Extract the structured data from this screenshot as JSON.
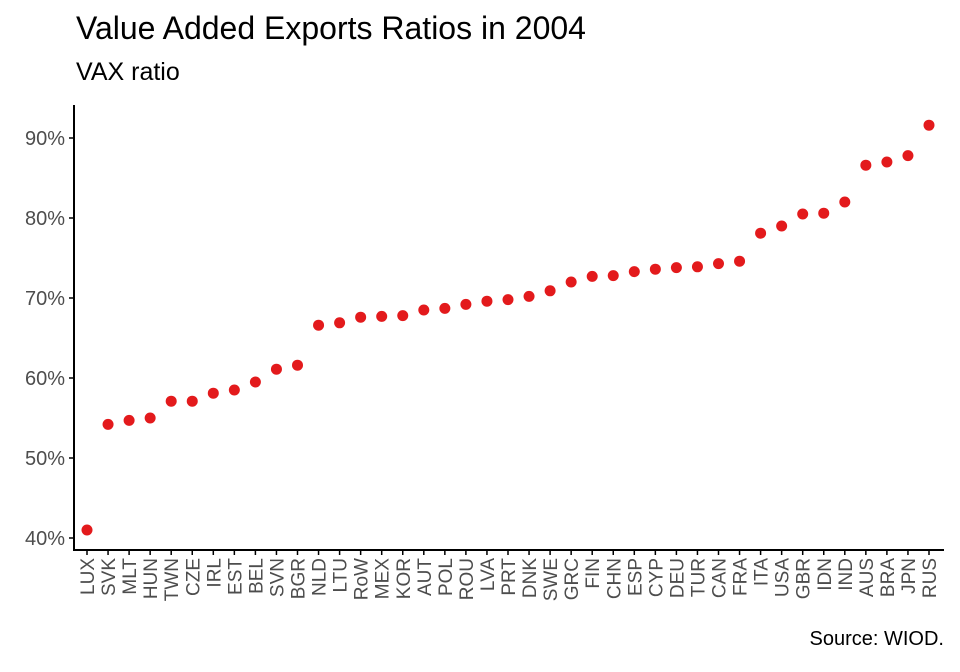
{
  "chart_data": {
    "type": "scatter",
    "title": "Value Added Exports Ratios in 2004",
    "subtitle": "VAX ratio",
    "caption": "Source: WIOD.",
    "xlabel": "",
    "ylabel": "",
    "ylim": [
      0.38,
      0.94
    ],
    "y_ticks": [
      0.4,
      0.5,
      0.6,
      0.7,
      0.8,
      0.9
    ],
    "y_tick_labels": [
      "40%",
      "50%",
      "60%",
      "70%",
      "80%",
      "90%"
    ],
    "grid": false,
    "point_color": "#e31a1c",
    "categories": [
      "LUX",
      "SVK",
      "MLT",
      "HUN",
      "TWN",
      "CZE",
      "IRL",
      "EST",
      "BEL",
      "SVN",
      "BGR",
      "NLD",
      "LTU",
      "RoW",
      "MEX",
      "KOR",
      "AUT",
      "POL",
      "ROU",
      "LVA",
      "PRT",
      "DNK",
      "SWE",
      "GRC",
      "FIN",
      "CHN",
      "ESP",
      "CYP",
      "DEU",
      "TUR",
      "CAN",
      "FRA",
      "ITA",
      "USA",
      "GBR",
      "IDN",
      "IND",
      "AUS",
      "BRA",
      "JPN",
      "RUS"
    ],
    "values": [
      0.41,
      0.542,
      0.547,
      0.55,
      0.571,
      0.571,
      0.581,
      0.585,
      0.595,
      0.611,
      0.616,
      0.666,
      0.669,
      0.676,
      0.677,
      0.678,
      0.685,
      0.687,
      0.692,
      0.696,
      0.698,
      0.702,
      0.709,
      0.72,
      0.727,
      0.728,
      0.733,
      0.736,
      0.738,
      0.739,
      0.743,
      0.746,
      0.781,
      0.79,
      0.805,
      0.806,
      0.82,
      0.866,
      0.87,
      0.878,
      0.916
    ]
  }
}
